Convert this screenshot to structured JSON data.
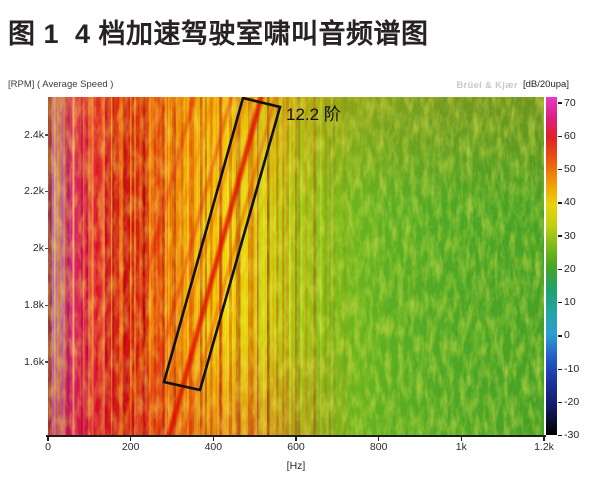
{
  "figure_title": "图 1  4 档加速驾驶室啸叫音频谱图",
  "chart": {
    "rpm_axis_label": "[RPM] ( Average Speed )",
    "watermark": "Brüel & Kjær",
    "colorbar_unit_label": "[dB/20upa]",
    "freq_axis_label": "[Hz]"
  },
  "chart_data": {
    "type": "heatmap",
    "title": "4 档加速驾驶室啸叫音频谱图",
    "xlabel": "[Hz]",
    "ylabel": "[RPM] ( Average Speed )",
    "x_ticks": [
      "0",
      "200",
      "400",
      "600",
      "800",
      "1k",
      "1.2k"
    ],
    "x_range_hz": [
      0,
      1200
    ],
    "y_ticks": [
      "2.4k",
      "2.2k",
      "2k",
      "1.8k",
      "1.6k"
    ],
    "y_range_rpm": [
      1350,
      2560
    ],
    "grid": false,
    "legend_position": "right-colorbar",
    "annotation_text": "12.2 阶",
    "annotation_region": "slanted rectangle marking the 12.2-order whine band, from about 350 Hz at 1.6k RPM up to about 560 Hz at 2.55k RPM",
    "colorbar": {
      "label": "[dB/20upa]",
      "range_db": [
        -30,
        70
      ],
      "tick_labels": [
        "70",
        "60",
        "50",
        "40",
        "30",
        "20",
        "10",
        "0",
        "-10",
        "-20",
        "-30"
      ],
      "stops": [
        {
          "db": 70,
          "color": "#ea38c8"
        },
        {
          "db": 64,
          "color": "#dc2080"
        },
        {
          "db": 58,
          "color": "#e02026"
        },
        {
          "db": 51,
          "color": "#ea5a0e"
        },
        {
          "db": 44,
          "color": "#f0a006"
        },
        {
          "db": 38,
          "color": "#e8d408"
        },
        {
          "db": 32,
          "color": "#c0d00e"
        },
        {
          "db": 26,
          "color": "#7cba1a"
        },
        {
          "db": 20,
          "color": "#48a622"
        },
        {
          "db": 13,
          "color": "#21a06e"
        },
        {
          "db": 7,
          "color": "#22a49e"
        },
        {
          "db": 0,
          "color": "#2e9ed2"
        },
        {
          "db": -8,
          "color": "#2256c4"
        },
        {
          "db": -15,
          "color": "#1c2f9a"
        },
        {
          "db": -22,
          "color": "#121a60"
        },
        {
          "db": -30,
          "color": "#000000"
        }
      ]
    },
    "spectral_zones": [
      {
        "hz": 0,
        "color": "#62b030",
        "approx_db": 25
      },
      {
        "hz": 4,
        "color": "#c04040",
        "approx_db": 58
      },
      {
        "hz": 8,
        "color": "#b464b4",
        "approx_db": 68
      },
      {
        "hz": 44,
        "color": "#b060b0",
        "approx_db": 68
      },
      {
        "hz": 52,
        "color": "#d4258c",
        "approx_db": 64
      },
      {
        "hz": 95,
        "color": "#e0195c",
        "approx_db": 61
      },
      {
        "hz": 150,
        "color": "#dc1f28",
        "approx_db": 57
      },
      {
        "hz": 205,
        "color": "#cc1414",
        "approx_db": 56
      },
      {
        "hz": 240,
        "color": "#e03414",
        "approx_db": 54
      },
      {
        "hz": 285,
        "color": "#ea6e0c",
        "approx_db": 50
      },
      {
        "hz": 335,
        "color": "#f0a206",
        "approx_db": 46
      },
      {
        "hz": 395,
        "color": "#ecc808",
        "approx_db": 42
      },
      {
        "hz": 455,
        "color": "#e6d60a",
        "approx_db": 39
      },
      {
        "hz": 525,
        "color": "#c6d410",
        "approx_db": 34
      },
      {
        "hz": 605,
        "color": "#9ac816",
        "approx_db": 30
      },
      {
        "hz": 705,
        "color": "#74b81c",
        "approx_db": 26
      },
      {
        "hz": 825,
        "color": "#5cae20",
        "approx_db": 23
      },
      {
        "hz": 1000,
        "color": "#4ea622",
        "approx_db": 21
      },
      {
        "hz": 1200,
        "color": "#47a021",
        "approx_db": 20
      }
    ]
  }
}
